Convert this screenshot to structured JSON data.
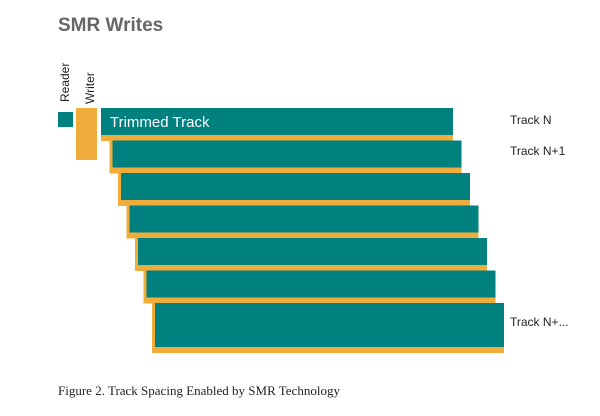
{
  "title": "SMR Writes",
  "head_labels": {
    "reader": "Reader",
    "writer": "Writer"
  },
  "trimmed_track": "Trimmed Track",
  "track_labels": [
    "Track N",
    "Track N+1",
    "Track N+..."
  ],
  "caption": "Figure 2. Track Spacing Enabled by SMR Technology"
}
